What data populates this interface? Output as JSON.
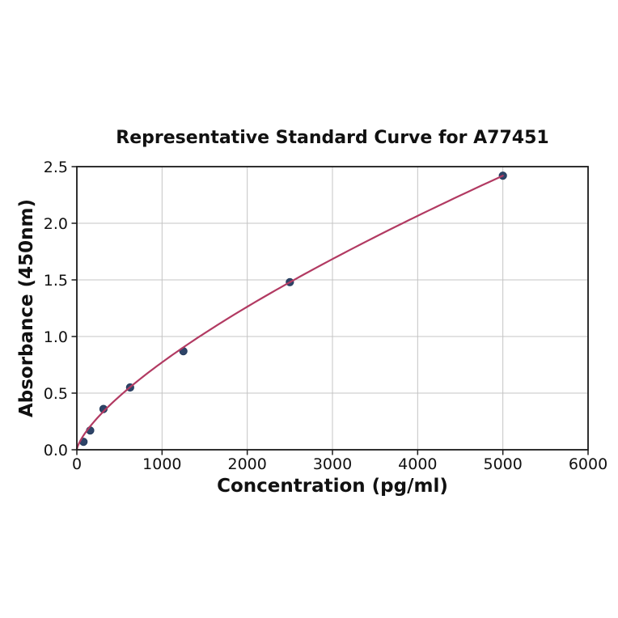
{
  "chart_data": {
    "type": "scatter",
    "title": "Representative Standard Curve for A77451",
    "xlabel": "Concentration (pg/ml)",
    "ylabel": "Absorbance (450nm)",
    "x": [
      78.1,
      156.3,
      312.5,
      625,
      1250,
      2500,
      5000
    ],
    "y": [
      0.07,
      0.17,
      0.36,
      0.55,
      0.87,
      1.48,
      2.42
    ],
    "xlim": [
      0,
      6000
    ],
    "ylim": [
      0,
      2.5
    ],
    "xticks": [
      0,
      1000,
      2000,
      3000,
      4000,
      5000,
      6000
    ],
    "xtick_labels": [
      "0",
      "1000",
      "2000",
      "3000",
      "4000",
      "5000",
      "6000"
    ],
    "yticks": [
      0,
      0.5,
      1.0,
      1.5,
      2.0,
      2.5
    ],
    "ytick_labels": [
      "0.0",
      "0.5",
      "1.0",
      "1.5",
      "2.0",
      "2.5"
    ],
    "grid": true,
    "legend": "none",
    "curve_fit": {
      "type": "power",
      "x_start": 0,
      "x_end": 5000,
      "y_at_x_end": 2.42,
      "exponent": 0.71
    },
    "colors": {
      "curve": "#b23a62",
      "marker": "#2e4468",
      "marker_edge": "#243a5c",
      "grid": "#c4c4c4",
      "spine": "#1a1a1a",
      "text": "#111111",
      "background": "#ffffff"
    }
  }
}
